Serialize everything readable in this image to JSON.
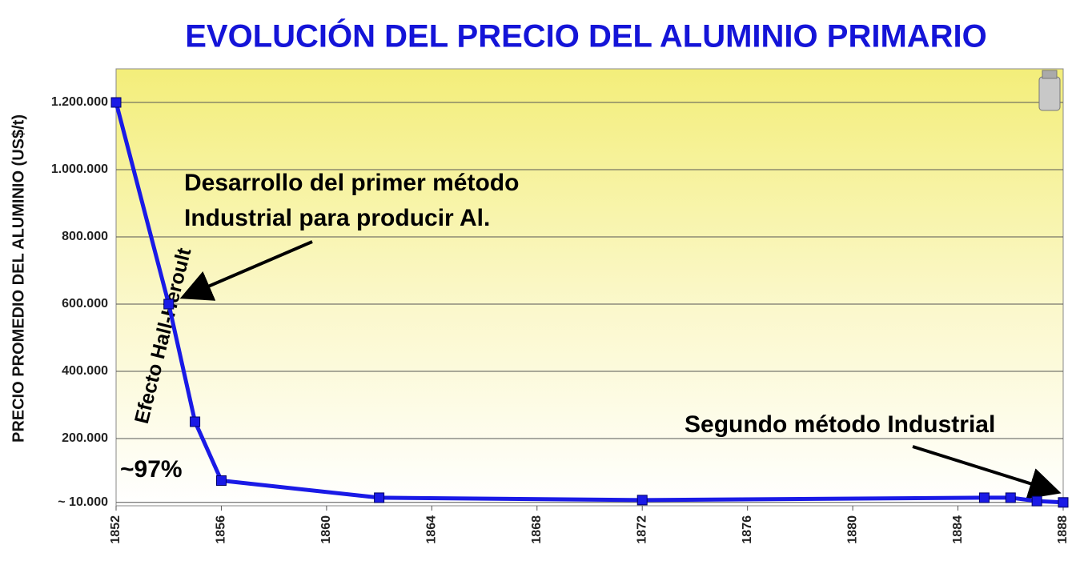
{
  "chart_data": {
    "type": "line",
    "title": "EVOLUCIÓN DEL PRECIO DEL ALUMINIO PRIMARIO",
    "y_label": "PRECIO PROMEDIO DEL ALUMINIO (US$/t)",
    "x": [
      1852,
      1854,
      1855,
      1856,
      1862,
      1872,
      1885,
      1886,
      1887,
      1888
    ],
    "series": [
      {
        "color": "#1a1ae6",
        "values": [
          1200000,
          600000,
          250000,
          75000,
          24000,
          17000,
          24000,
          24000,
          14000,
          10000
        ]
      }
    ],
    "xlim": [
      1852,
      1888
    ],
    "xticks": [
      1852,
      1856,
      1860,
      1864,
      1868,
      1872,
      1876,
      1880,
      1884,
      1888
    ],
    "ylim": [
      0,
      1300000
    ],
    "yticks": [
      {
        "value": 10000,
        "label": "~ 10.000"
      },
      {
        "value": 200000,
        "label": "200.000"
      },
      {
        "value": 400000,
        "label": "400.000"
      },
      {
        "value": 600000,
        "label": "600.000"
      },
      {
        "value": 800000,
        "label": "800.000"
      },
      {
        "value": 1000000,
        "label": "1.000.000"
      },
      {
        "value": 1200000,
        "label": "1.200.000"
      }
    ],
    "grid": true,
    "annotations": [
      "Desarrollo del primer método",
      "Industrial para producir Al.",
      "Efecto Hall-Héroult",
      "~97%",
      "Segundo método Industrial"
    ]
  }
}
